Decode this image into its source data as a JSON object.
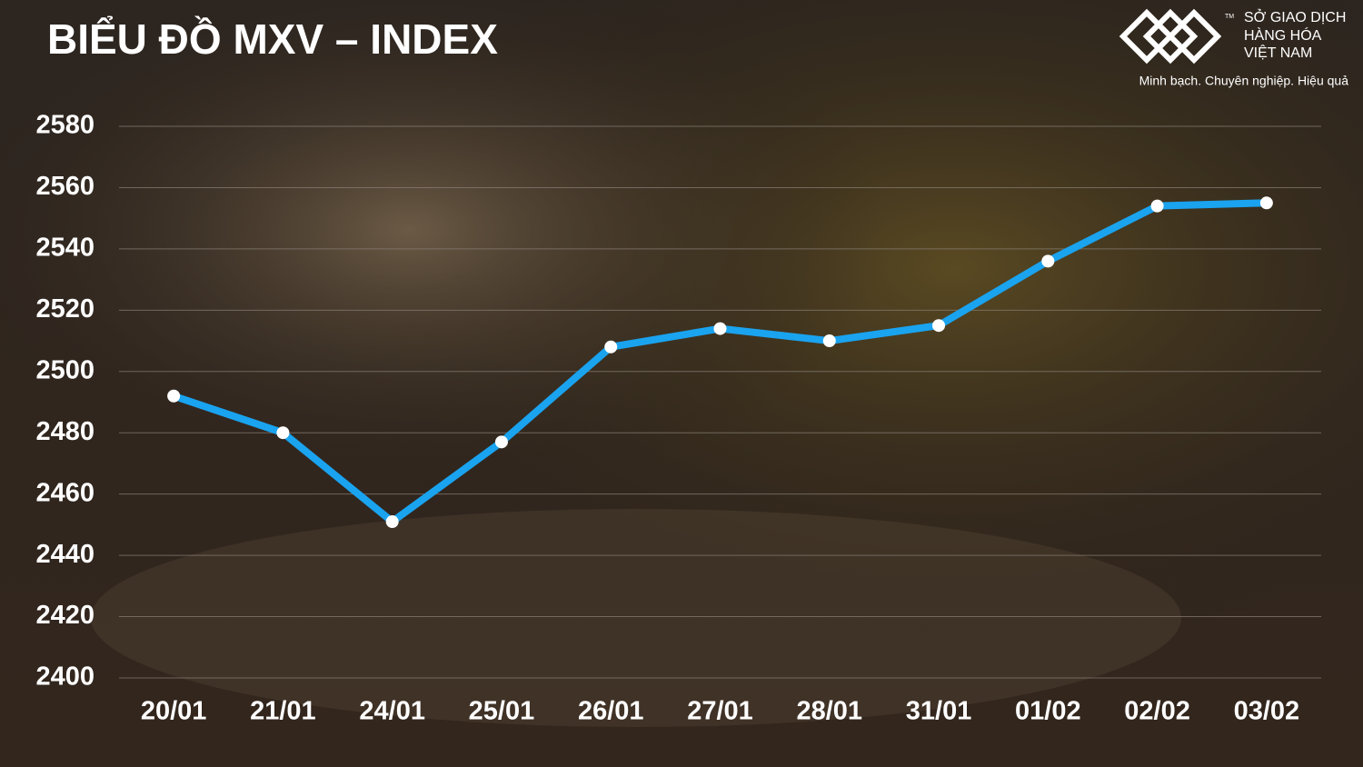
{
  "brand": {
    "name_lines": [
      "SỞ GIAO DỊCH",
      "HÀNG HÓA",
      "VIỆT NAM"
    ],
    "trademark": "TM",
    "slogan": "Minh bạch. Chuyên nghiệp. Hiệu quả"
  },
  "chart_data": {
    "type": "line",
    "title": "BIỂU ĐỒ MXV – INDEX",
    "categories": [
      "20/01",
      "21/01",
      "24/01",
      "25/01",
      "26/01",
      "27/01",
      "28/01",
      "31/01",
      "01/02",
      "02/02",
      "03/02"
    ],
    "series": [
      {
        "name": "MXV-Index",
        "color": "#1aa3ef",
        "values": [
          2492,
          2480,
          2451,
          2477,
          2508,
          2514,
          2510,
          2515,
          2536,
          2554,
          2555
        ]
      }
    ],
    "ylim": [
      2400,
      2580
    ],
    "yticks": [
      2400,
      2420,
      2440,
      2460,
      2480,
      2500,
      2520,
      2540,
      2560,
      2580
    ],
    "grid": true
  }
}
